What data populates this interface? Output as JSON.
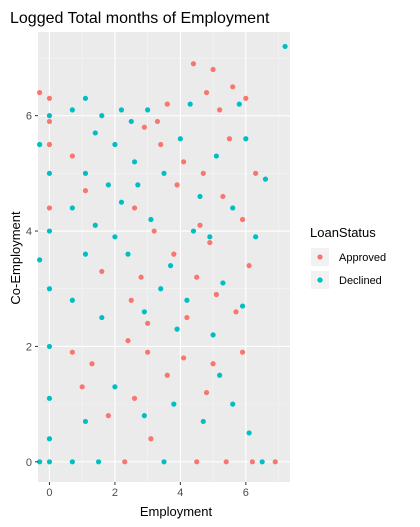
{
  "chart_data": {
    "type": "scatter",
    "title": "Logged Total months of Employment",
    "xlabel": "Employment",
    "ylabel": "Co-Employment",
    "xlim": [
      -0.35,
      7.35
    ],
    "ylim": [
      -0.35,
      7.45
    ],
    "x_ticks": [
      0,
      2,
      4,
      6
    ],
    "y_ticks": [
      0,
      2,
      4,
      6
    ],
    "x_tick_labels": [
      "0",
      "2",
      "4",
      "6"
    ],
    "y_tick_labels": [
      "0",
      "2",
      "4",
      "6"
    ],
    "grid": true,
    "legend": {
      "title": "LoanStatus",
      "position": "right",
      "entries": [
        {
          "label": "Approved",
          "color": "#F8766D"
        },
        {
          "label": "Declined",
          "color": "#00BFC4"
        }
      ]
    },
    "series": [
      {
        "name": "Approved",
        "color": "#F8766D",
        "points": [
          [
            4.4,
            6.9
          ],
          [
            5.0,
            6.8
          ],
          [
            6.0,
            6.3
          ],
          [
            5.6,
            6.5
          ],
          [
            4.8,
            6.4
          ],
          [
            3.6,
            6.2
          ],
          [
            5.2,
            6.1
          ],
          [
            2.9,
            5.8
          ],
          [
            3.4,
            5.5
          ],
          [
            4.1,
            5.2
          ],
          [
            4.7,
            5.0
          ],
          [
            5.3,
            4.6
          ],
          [
            5.9,
            4.2
          ],
          [
            2.6,
            4.4
          ],
          [
            3.2,
            4.0
          ],
          [
            3.8,
            3.6
          ],
          [
            4.5,
            3.2
          ],
          [
            5.1,
            2.9
          ],
          [
            5.7,
            2.6
          ],
          [
            6.1,
            3.4
          ],
          [
            2.5,
            2.8
          ],
          [
            3.0,
            2.4
          ],
          [
            4.2,
            2.5
          ],
          [
            4.9,
            3.8
          ],
          [
            5.5,
            5.6
          ],
          [
            3.9,
            4.8
          ],
          [
            2.8,
            3.2
          ],
          [
            6.3,
            5.0
          ],
          [
            3.3,
            5.9
          ],
          [
            4.6,
            4.1
          ],
          [
            0.0,
            6.3
          ],
          [
            0.0,
            5.9
          ],
          [
            0.0,
            5.5
          ],
          [
            0.0,
            4.4
          ],
          [
            -0.3,
            6.4
          ],
          [
            0.7,
            5.3
          ],
          [
            1.1,
            4.7
          ],
          [
            1.6,
            3.3
          ],
          [
            0.7,
            1.9
          ],
          [
            1.3,
            1.7
          ],
          [
            3.0,
            1.9
          ],
          [
            4.1,
            1.8
          ],
          [
            5.0,
            1.7
          ],
          [
            5.9,
            1.9
          ],
          [
            2.4,
            2.1
          ],
          [
            3.6,
            1.5
          ],
          [
            1.8,
            0.8
          ],
          [
            3.1,
            0.4
          ],
          [
            4.5,
            0.0
          ],
          [
            2.3,
            0.0
          ],
          [
            5.4,
            0.0
          ],
          [
            6.2,
            0.0
          ],
          [
            6.9,
            0.0
          ],
          [
            1.0,
            1.3
          ],
          [
            2.6,
            1.1
          ],
          [
            4.8,
            1.2
          ]
        ]
      },
      {
        "name": "Declined",
        "color": "#00BFC4",
        "points": [
          [
            7.2,
            7.2
          ],
          [
            5.8,
            6.2
          ],
          [
            4.3,
            6.2
          ],
          [
            3.0,
            6.1
          ],
          [
            2.5,
            5.9
          ],
          [
            4.0,
            5.6
          ],
          [
            5.1,
            5.3
          ],
          [
            3.5,
            5.0
          ],
          [
            2.7,
            4.8
          ],
          [
            4.6,
            4.6
          ],
          [
            5.6,
            4.4
          ],
          [
            3.1,
            4.2
          ],
          [
            4.9,
            3.9
          ],
          [
            2.4,
            3.6
          ],
          [
            3.7,
            3.4
          ],
          [
            5.3,
            3.1
          ],
          [
            4.2,
            2.8
          ],
          [
            2.9,
            2.6
          ],
          [
            5.9,
            2.7
          ],
          [
            3.4,
            3.0
          ],
          [
            6.0,
            5.6
          ],
          [
            2.6,
            5.2
          ],
          [
            4.4,
            4.0
          ],
          [
            3.9,
            2.3
          ],
          [
            5.0,
            2.2
          ],
          [
            0.0,
            6.0
          ],
          [
            0.0,
            5.0
          ],
          [
            0.0,
            4.0
          ],
          [
            0.0,
            3.0
          ],
          [
            0.0,
            2.0
          ],
          [
            -0.3,
            5.5
          ],
          [
            -0.3,
            3.5
          ],
          [
            0.7,
            6.1
          ],
          [
            0.7,
            4.4
          ],
          [
            0.7,
            2.8
          ],
          [
            1.1,
            6.3
          ],
          [
            1.1,
            5.0
          ],
          [
            1.1,
            3.6
          ],
          [
            1.4,
            5.7
          ],
          [
            1.4,
            4.1
          ],
          [
            1.6,
            6.0
          ],
          [
            1.6,
            2.5
          ],
          [
            1.8,
            4.8
          ],
          [
            2.0,
            5.5
          ],
          [
            2.0,
            3.9
          ],
          [
            2.2,
            6.1
          ],
          [
            2.2,
            4.5
          ],
          [
            0.0,
            1.1
          ],
          [
            0.0,
            0.4
          ],
          [
            -0.3,
            0.0
          ],
          [
            0.0,
            0.0
          ],
          [
            1.1,
            0.7
          ],
          [
            2.0,
            1.3
          ],
          [
            2.9,
            0.8
          ],
          [
            3.8,
            1.0
          ],
          [
            4.7,
            0.7
          ],
          [
            5.6,
            1.0
          ],
          [
            6.1,
            0.5
          ],
          [
            6.5,
            0.0
          ],
          [
            3.5,
            0.0
          ],
          [
            1.5,
            0.0
          ],
          [
            0.7,
            0.0
          ],
          [
            5.2,
            1.5
          ],
          [
            6.6,
            4.9
          ],
          [
            6.3,
            3.9
          ]
        ]
      }
    ]
  }
}
